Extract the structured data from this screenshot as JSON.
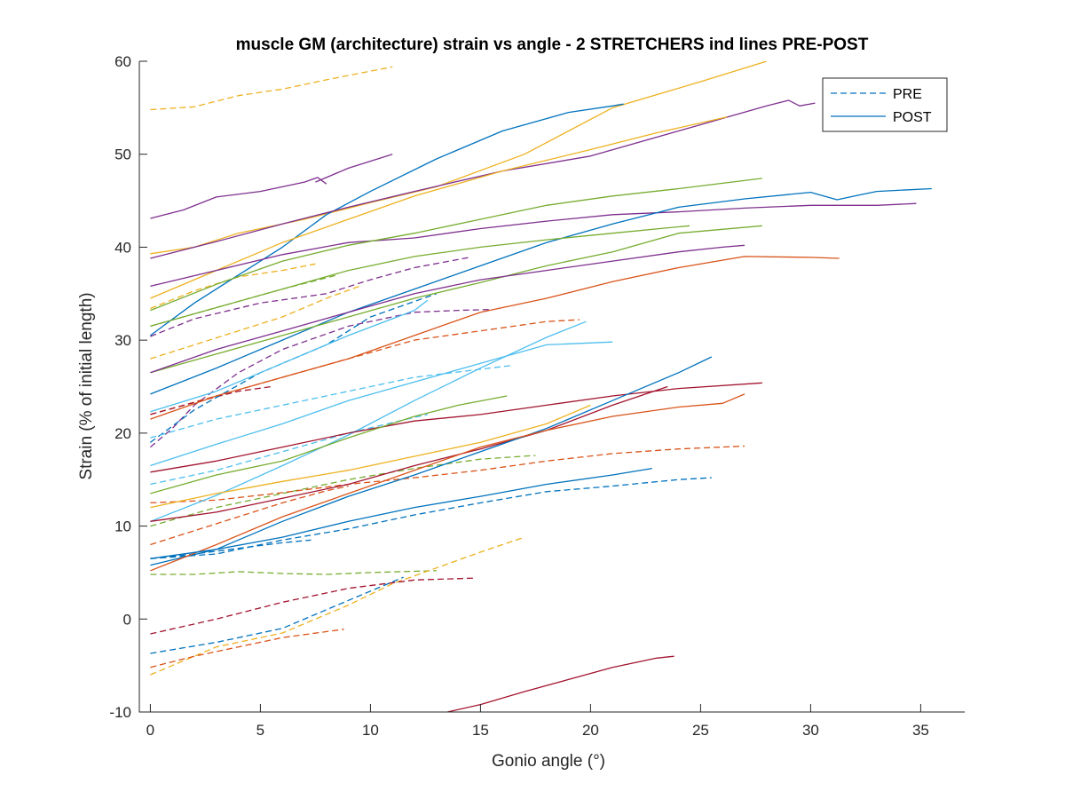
{
  "chart_data": {
    "type": "line",
    "title": "muscle GM (architecture) strain vs angle - 2 STRETCHERS ind lines PRE-POST",
    "xlabel": "Gonio angle (°)",
    "ylabel": "Strain (% of initial length)",
    "xlim": [
      -0.5,
      37
    ],
    "ylim": [
      -10,
      60
    ],
    "xticks": [
      0,
      5,
      10,
      15,
      20,
      25,
      30,
      35
    ],
    "yticks": [
      -10,
      0,
      10,
      20,
      30,
      40,
      50,
      60
    ],
    "xtick_labels": [
      "0",
      "5",
      "10",
      "15",
      "20",
      "25",
      "30",
      "35"
    ],
    "ytick_labels": [
      "-10",
      "0",
      "10",
      "20",
      "30",
      "40",
      "50",
      "60"
    ],
    "grid": false,
    "legend": {
      "position": "top-right",
      "entries": [
        {
          "label": "PRE",
          "style": "dashed",
          "color": "#0072BD"
        },
        {
          "label": "POST",
          "style": "solid",
          "color": "#0072BD"
        }
      ]
    },
    "series": [
      {
        "style": "dashed",
        "color": "#EDB120",
        "x": [
          0,
          2,
          4,
          6,
          8,
          11
        ],
        "y": [
          54.8,
          55.1,
          56.3,
          57,
          58,
          59.4
        ]
      },
      {
        "style": "dashed",
        "color": "#7E2F8E",
        "x": [
          0,
          2,
          5,
          8,
          10,
          12,
          14.5
        ],
        "y": [
          30.4,
          32.3,
          34,
          35,
          36.5,
          37.8,
          38.9
        ]
      },
      {
        "style": "dashed",
        "color": "#77AC30",
        "x": [
          0,
          3,
          6,
          8.5
        ],
        "y": [
          31.5,
          33.5,
          35.5,
          37
        ]
      },
      {
        "style": "dashed",
        "color": "#EDB120",
        "x": [
          0,
          2,
          4,
          6,
          8,
          9.5
        ],
        "y": [
          28,
          29.5,
          31,
          32.5,
          34.5,
          35.8
        ]
      },
      {
        "style": "dashed",
        "color": "#EDB120",
        "x": [
          0,
          2,
          4,
          6,
          7.5
        ],
        "y": [
          33.4,
          35.3,
          36.8,
          37.5,
          38.2
        ]
      },
      {
        "style": "dashed",
        "color": "#7E2F8E",
        "x": [
          0,
          1,
          2,
          4,
          6,
          9,
          12,
          14,
          15.5
        ],
        "y": [
          18.5,
          20.5,
          23,
          26.5,
          29,
          31.5,
          33,
          33.2,
          33.3
        ]
      },
      {
        "style": "dashed",
        "color": "#D95319",
        "x": [
          0,
          3,
          6,
          9,
          12,
          15,
          18,
          19.5
        ],
        "y": [
          22,
          24,
          26,
          28,
          30,
          31,
          32,
          32.2
        ]
      },
      {
        "style": "dashed",
        "color": "#A2142F",
        "x": [
          0,
          2,
          4,
          5.5
        ],
        "y": [
          22,
          23.3,
          24.5,
          25
        ]
      },
      {
        "style": "dashed",
        "color": "#0072BD",
        "x": [
          0,
          2,
          5,
          8,
          10,
          13
        ],
        "y": [
          19,
          22.5,
          26.5,
          29.5,
          32.5,
          35
        ]
      },
      {
        "style": "dashed",
        "color": "#4DBEEE",
        "x": [
          0,
          3,
          6,
          9,
          12,
          16.5
        ],
        "y": [
          19.5,
          21.5,
          23,
          24.5,
          26,
          27.3
        ]
      },
      {
        "style": "dashed",
        "color": "#4DBEEE",
        "x": [
          0,
          3,
          6,
          9,
          12,
          12.6
        ],
        "y": [
          14.5,
          16,
          18,
          20,
          21.7,
          22
        ]
      },
      {
        "style": "dashed",
        "color": "#77AC30",
        "x": [
          0,
          3,
          6,
          9,
          12,
          15,
          17.5
        ],
        "y": [
          10,
          12,
          13.5,
          15,
          16.2,
          17.2,
          17.6
        ]
      },
      {
        "style": "dashed",
        "color": "#D95319",
        "x": [
          0,
          3,
          6,
          9,
          12,
          15,
          18,
          21,
          24,
          27
        ],
        "y": [
          12.5,
          12.8,
          13.6,
          14.5,
          15.2,
          16,
          17,
          17.8,
          18.3,
          18.6
        ]
      },
      {
        "style": "dashed",
        "color": "#D95319",
        "x": [
          0,
          2,
          4,
          6,
          8,
          9
        ],
        "y": [
          8,
          9.5,
          11,
          12.5,
          13.8,
          14.3
        ]
      },
      {
        "style": "dashed",
        "color": "#0072BD",
        "x": [
          0,
          3,
          6,
          9,
          12,
          15,
          18,
          21,
          24,
          25.5
        ],
        "y": [
          6.5,
          7,
          8.5,
          9.7,
          11.2,
          12.5,
          13.7,
          14.3,
          15,
          15.2
        ]
      },
      {
        "style": "dashed",
        "color": "#0072BD",
        "x": [
          0,
          2,
          4,
          6,
          7.3
        ],
        "y": [
          6.5,
          7,
          7.6,
          8.2,
          8.5
        ]
      },
      {
        "style": "dashed",
        "color": "#77AC30",
        "x": [
          0,
          2,
          4,
          6,
          8,
          10,
          13
        ],
        "y": [
          4.8,
          4.8,
          5.1,
          4.9,
          4.8,
          5,
          5.2
        ]
      },
      {
        "style": "dashed",
        "color": "#EDB120",
        "x": [
          0,
          3,
          6,
          9,
          11,
          13,
          15,
          17
        ],
        "y": [
          -6,
          -3,
          -1.5,
          1.5,
          3.8,
          5.5,
          7.2,
          8.8
        ]
      },
      {
        "style": "dashed",
        "color": "#A2142F",
        "x": [
          0,
          3,
          6,
          9,
          12,
          14.7
        ],
        "y": [
          -1.6,
          0,
          1.8,
          3.3,
          4.2,
          4.4
        ]
      },
      {
        "style": "dashed",
        "color": "#0072BD",
        "x": [
          0,
          3,
          6,
          9,
          11.5
        ],
        "y": [
          -3.7,
          -2.5,
          -1,
          2,
          4.5
        ]
      },
      {
        "style": "dashed",
        "color": "#D95319",
        "x": [
          0,
          2,
          4,
          6,
          8.8
        ],
        "y": [
          -5.2,
          -4,
          -3,
          -2,
          -1.1
        ]
      },
      {
        "style": "solid",
        "color": "#7E2F8E",
        "x": [
          0,
          1.5,
          3,
          5,
          7,
          7.6,
          8
        ],
        "y": [
          43.1,
          44,
          45.4,
          46,
          47,
          47.5,
          46.8
        ]
      },
      {
        "style": "solid",
        "color": "#7E2F8E",
        "x": [
          7.5,
          9,
          11
        ],
        "y": [
          47,
          48.5,
          50
        ]
      },
      {
        "style": "solid",
        "color": "#EDB120",
        "x": [
          0,
          2,
          4,
          7,
          10,
          13,
          17,
          21,
          25,
          28
        ],
        "y": [
          39.3,
          40,
          41.5,
          43,
          44.8,
          46.5,
          50,
          55,
          57.8,
          60
        ]
      },
      {
        "style": "solid",
        "color": "#0072BD",
        "x": [
          0,
          2,
          4,
          6,
          8,
          10,
          13,
          16,
          19,
          21,
          21.5
        ],
        "y": [
          30.5,
          34,
          37,
          40,
          43.5,
          46,
          49.5,
          52.5,
          54.5,
          55.2,
          55.4
        ]
      },
      {
        "style": "solid",
        "color": "#7E2F8E",
        "x": [
          0,
          3,
          6,
          9,
          12,
          16,
          20,
          24,
          28,
          29,
          29.5,
          30.2
        ],
        "y": [
          38.8,
          40.6,
          42.5,
          44.3,
          46,
          48.2,
          49.8,
          52.5,
          55.2,
          55.8,
          55.2,
          55.5
        ]
      },
      {
        "style": "solid",
        "color": "#EDB120",
        "x": [
          0,
          3,
          6,
          9,
          12,
          16,
          20,
          23,
          26.2
        ],
        "y": [
          34.5,
          37.5,
          40.5,
          43,
          45.5,
          48.2,
          50.5,
          52.3,
          54
        ]
      },
      {
        "style": "solid",
        "color": "#7E2F8E",
        "x": [
          0,
          3,
          6,
          9,
          12,
          15,
          18,
          21,
          24,
          27,
          30,
          33,
          34.8
        ],
        "y": [
          35.8,
          37.5,
          39.2,
          40.5,
          41,
          42,
          42.8,
          43.5,
          43.8,
          44.2,
          44.5,
          44.5,
          44.7
        ]
      },
      {
        "style": "solid",
        "color": "#77AC30",
        "x": [
          0,
          3,
          6,
          9,
          12,
          15,
          18,
          21,
          24,
          27.8
        ],
        "y": [
          33.2,
          36,
          38.5,
          40.2,
          41.5,
          43,
          44.5,
          45.5,
          46.3,
          47.4
        ]
      },
      {
        "style": "solid",
        "color": "#0072BD",
        "x": [
          0,
          3,
          6,
          9,
          12,
          15,
          18,
          21,
          24,
          27,
          30,
          31.2,
          32,
          33,
          35.5
        ],
        "y": [
          24.2,
          27,
          30,
          33,
          35.5,
          38,
          40.5,
          42.5,
          44.3,
          45.2,
          45.9,
          45.1,
          45.5,
          46,
          46.3
        ]
      },
      {
        "style": "solid",
        "color": "#77AC30",
        "x": [
          0,
          3,
          6,
          9,
          12,
          15,
          18,
          21,
          24.5
        ],
        "y": [
          31.5,
          33.5,
          35.5,
          37.5,
          39,
          40,
          40.8,
          41.5,
          42.3
        ]
      },
      {
        "style": "solid",
        "color": "#77AC30",
        "x": [
          0,
          3,
          6,
          9,
          12,
          15,
          18,
          21,
          24,
          27.8
        ],
        "y": [
          26.5,
          28.5,
          30.5,
          32.5,
          34.5,
          36.2,
          38,
          39.5,
          41.5,
          42.3
        ]
      },
      {
        "style": "solid",
        "color": "#D95319",
        "x": [
          0,
          3,
          6,
          9,
          12,
          15,
          18,
          21,
          24,
          27,
          30,
          31.3
        ],
        "y": [
          21.5,
          24,
          26,
          28,
          30.5,
          33,
          34.5,
          36.3,
          37.8,
          39,
          38.9,
          38.8
        ]
      },
      {
        "style": "solid",
        "color": "#7E2F8E",
        "x": [
          0,
          3,
          6,
          9,
          12,
          15,
          18,
          21,
          24,
          26,
          27
        ],
        "y": [
          26.5,
          29,
          31,
          33,
          35,
          36.5,
          37.5,
          38.5,
          39.5,
          40,
          40.2
        ]
      },
      {
        "style": "solid",
        "color": "#4DBEEE",
        "x": [
          0,
          3,
          6,
          9,
          12,
          15,
          18,
          21
        ],
        "y": [
          16.5,
          18.8,
          21,
          23.5,
          25.5,
          27.5,
          29.5,
          29.8
        ]
      },
      {
        "style": "solid",
        "color": "#4DBEEE",
        "x": [
          0,
          3,
          6,
          9,
          12,
          12.6
        ],
        "y": [
          22.3,
          24.5,
          27.5,
          30.5,
          33.2,
          34.3
        ]
      },
      {
        "style": "solid",
        "color": "#4DBEEE",
        "x": [
          0,
          3,
          6,
          9,
          12,
          15,
          18,
          19.8
        ],
        "y": [
          10.5,
          13.3,
          16.5,
          19.8,
          23.5,
          27,
          30.3,
          32
        ]
      },
      {
        "style": "solid",
        "color": "#A2142F",
        "x": [
          0,
          3,
          6,
          9,
          12,
          15,
          18,
          21,
          24,
          27.8
        ],
        "y": [
          15.8,
          17,
          18.5,
          20,
          21.3,
          22,
          23,
          24,
          24.8,
          25.4
        ]
      },
      {
        "style": "solid",
        "color": "#A2142F",
        "x": [
          0,
          3,
          6,
          9,
          12,
          15,
          18,
          21,
          23.5
        ],
        "y": [
          10.5,
          11.5,
          13,
          14.5,
          16.5,
          18.3,
          20.3,
          23,
          25
        ]
      },
      {
        "style": "solid",
        "color": "#0072BD",
        "x": [
          0,
          3,
          6,
          9,
          12,
          15,
          18,
          21,
          24,
          25.5
        ],
        "y": [
          5.8,
          7.5,
          10.5,
          13.2,
          15.5,
          18,
          20.5,
          23.5,
          26.5,
          28.2
        ]
      },
      {
        "style": "solid",
        "color": "#D95319",
        "x": [
          0,
          3,
          6,
          9,
          12,
          15,
          18,
          21,
          24,
          26,
          27
        ],
        "y": [
          5.2,
          8,
          11,
          13.5,
          16,
          18.5,
          20.3,
          21.8,
          22.8,
          23.2,
          24.2
        ]
      },
      {
        "style": "solid",
        "color": "#EDB120",
        "x": [
          0,
          3,
          6,
          9,
          12,
          15,
          18,
          20
        ],
        "y": [
          12,
          13.5,
          14.8,
          16,
          17.5,
          19,
          21,
          23
        ]
      },
      {
        "style": "solid",
        "color": "#77AC30",
        "x": [
          0,
          3,
          6,
          9,
          12,
          14,
          16.2
        ],
        "y": [
          13.5,
          15.5,
          17,
          19.5,
          21.8,
          23,
          24
        ]
      },
      {
        "style": "solid",
        "color": "#0072BD",
        "x": [
          0,
          3,
          6,
          9,
          12,
          15,
          18,
          21,
          22.8
        ],
        "y": [
          6.5,
          7.5,
          8.8,
          10.5,
          12,
          13.2,
          14.5,
          15.5,
          16.2
        ]
      },
      {
        "style": "solid",
        "color": "#A2142F",
        "x": [
          13.5,
          15,
          17,
          19,
          21,
          23,
          23.8
        ],
        "y": [
          -10,
          -9.2,
          -7.8,
          -6.5,
          -5.2,
          -4.2,
          -4
        ]
      }
    ]
  }
}
